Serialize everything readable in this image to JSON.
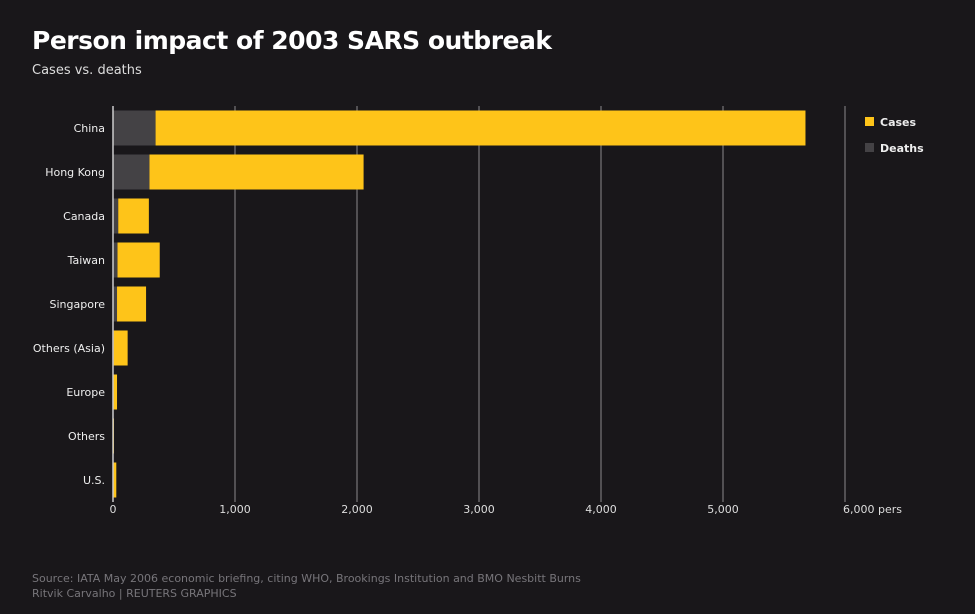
{
  "chart_data": {
    "type": "bar",
    "orientation": "horizontal",
    "stacked": true,
    "title": "Person impact of 2003 SARS outbreak",
    "subtitle": "Cases vs. deaths",
    "categories": [
      "China",
      "Hong Kong",
      "Canada",
      "Taiwan",
      "Singapore",
      "Others (Asia)",
      "Europe",
      "Others",
      "U.S."
    ],
    "series": [
      {
        "name": "Deaths",
        "color": "#444245",
        "values": [
          349,
          299,
          43,
          37,
          33,
          5,
          2,
          1,
          0
        ]
      },
      {
        "name": "Cases",
        "color": "#fec419",
        "values": [
          5327,
          1755,
          251,
          346,
          238,
          115,
          31,
          7,
          27
        ]
      }
    ],
    "xlim": [
      0,
      6000
    ],
    "xticks": [
      "0",
      "1,000",
      "2,000",
      "3,000",
      "4,000",
      "5,000",
      "6,000 pers"
    ],
    "grid": true,
    "legend": "top-right"
  },
  "footer": {
    "source": "Source: IATA May 2006 economic briefing, citing WHO, Brookings Institution and BMO Nesbitt Burns",
    "credit": "Ritvik Carvalho    | REUTERS GRAPHICS"
  }
}
